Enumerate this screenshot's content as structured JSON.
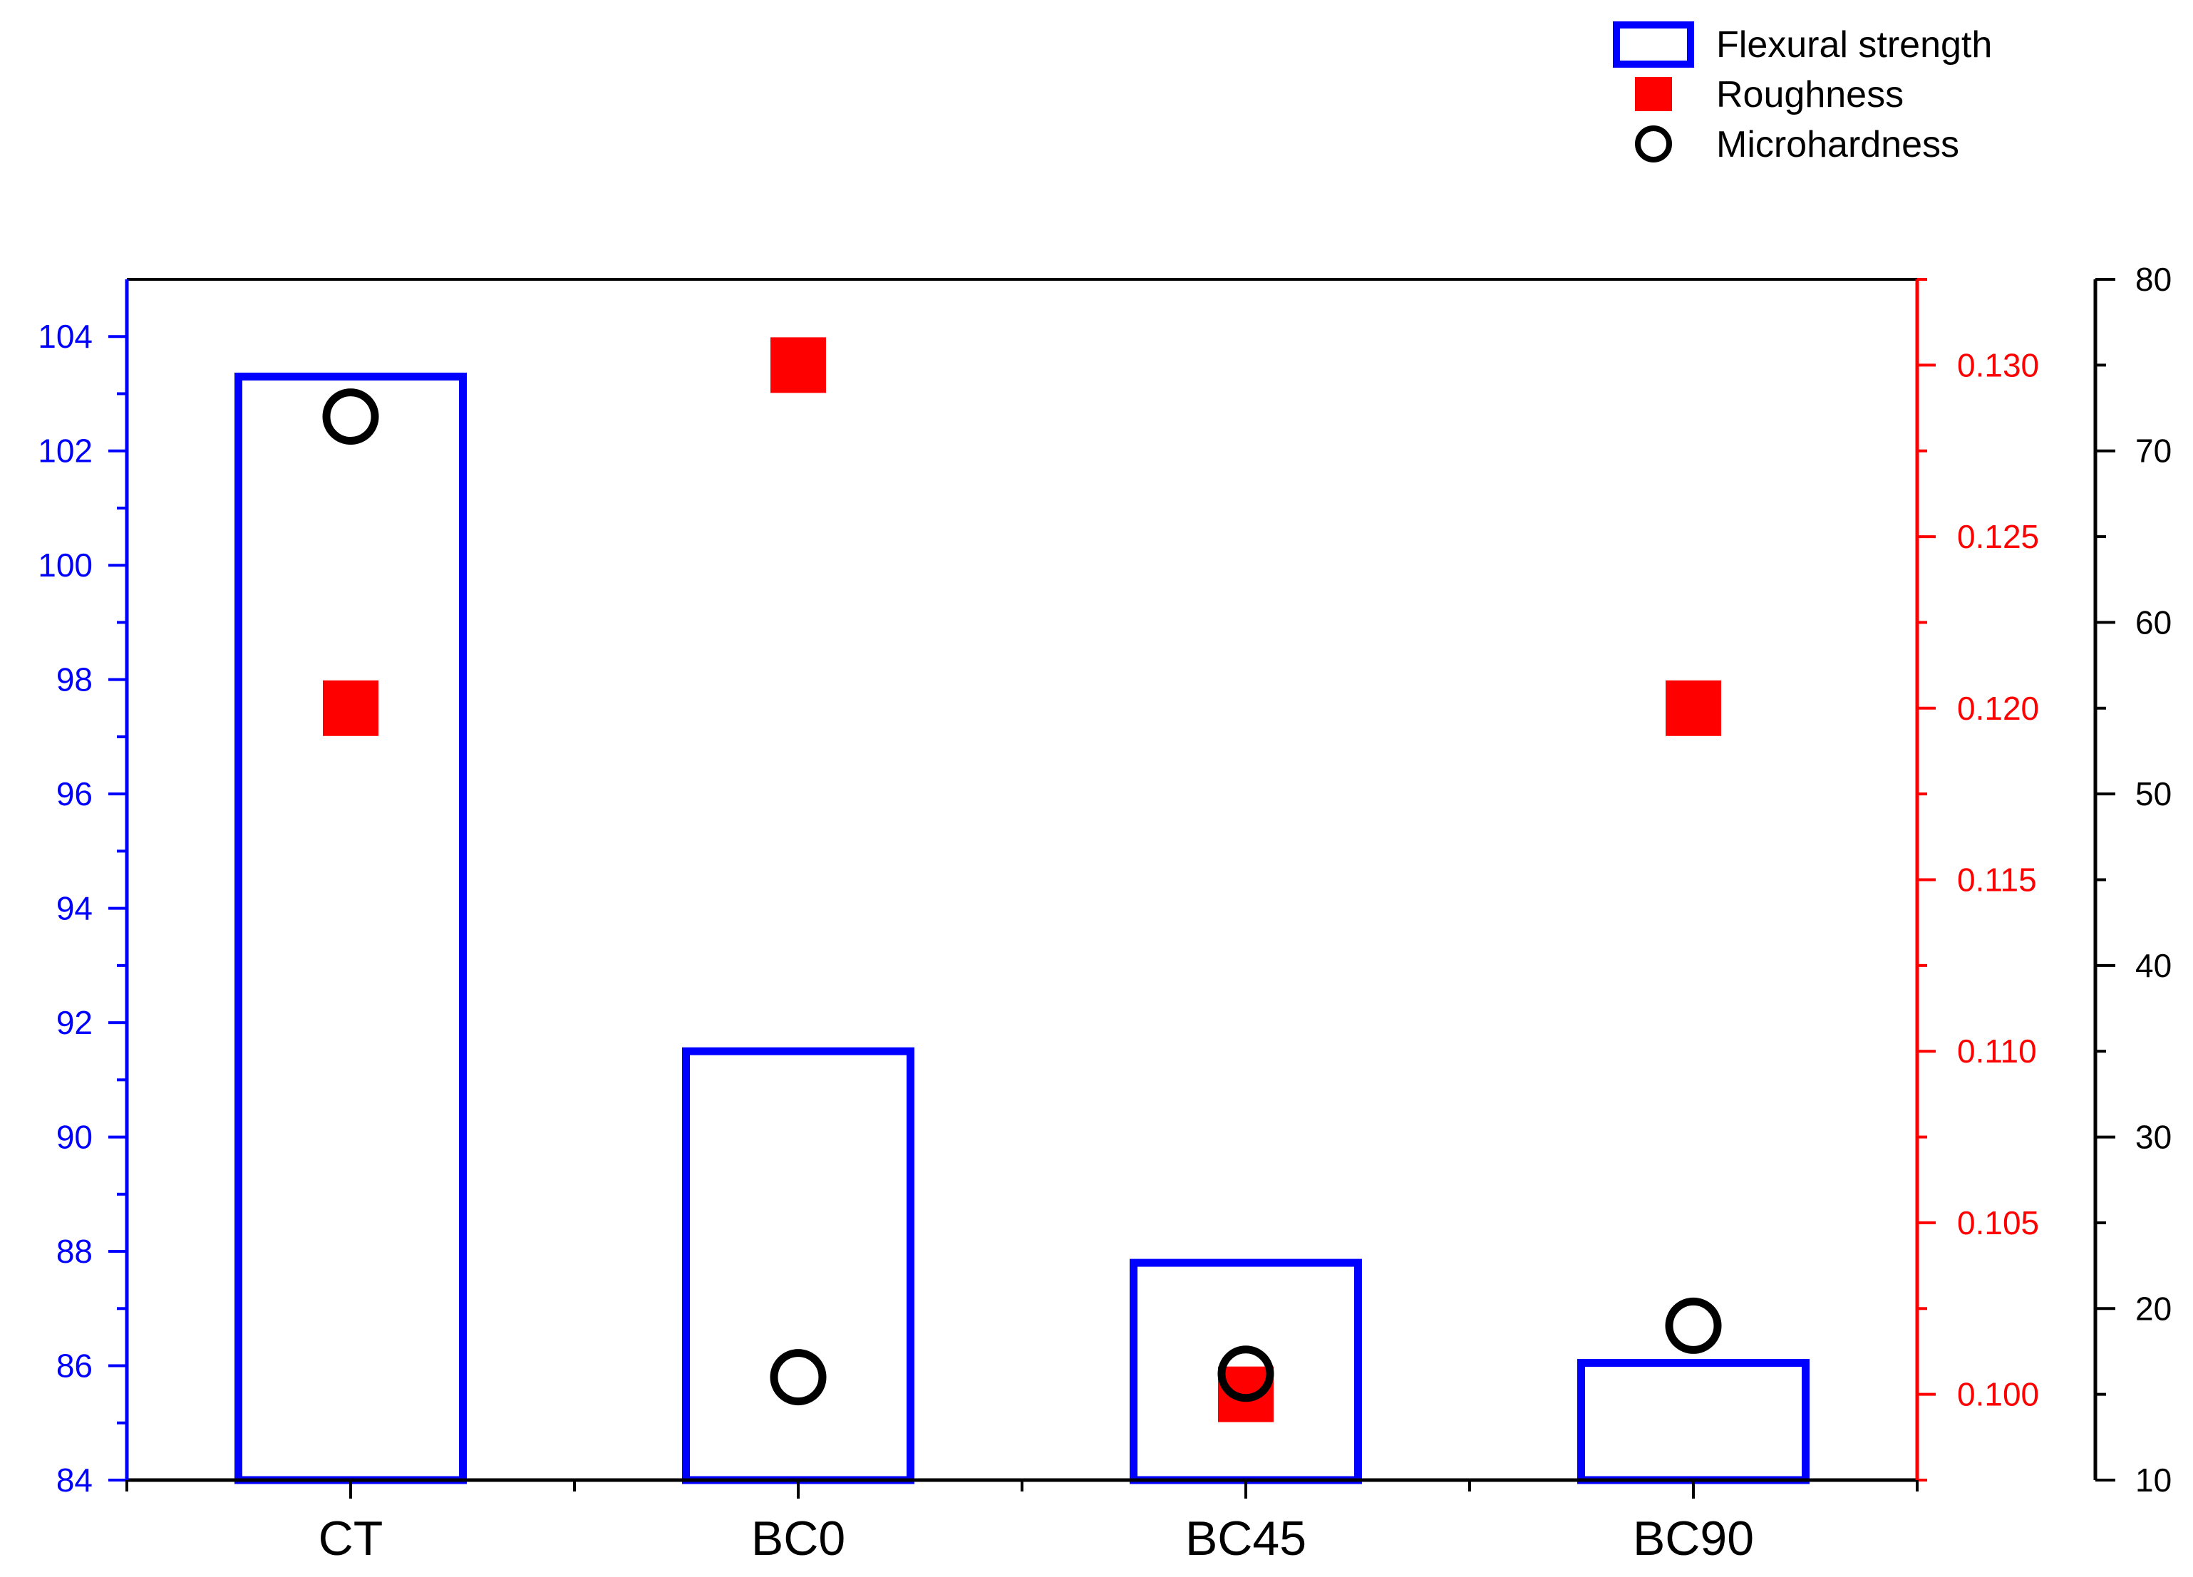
{
  "chart_data": {
    "type": "bar",
    "categories": [
      "CT",
      "BC0",
      "BC45",
      "BC90"
    ],
    "series": [
      {
        "name": "Flexural strength",
        "kind": "bar",
        "axis": "left",
        "color": "#0000ff",
        "values": [
          103.3,
          91.5,
          87.8,
          86.05
        ]
      },
      {
        "name": "Roughness",
        "kind": "square-marker",
        "axis": "right-inner",
        "color": "#ff0000",
        "values": [
          0.12,
          0.13,
          0.1,
          0.12
        ]
      },
      {
        "name": "Microhardness",
        "kind": "open-circle-marker",
        "axis": "right-outer",
        "color": "#000000",
        "values": [
          72,
          16,
          16.2,
          19
        ]
      }
    ],
    "axes": {
      "left": {
        "ylim": [
          84,
          105
        ],
        "ticks": [
          84,
          86,
          88,
          90,
          92,
          94,
          96,
          98,
          100,
          102,
          104
        ],
        "color": "#0000ff"
      },
      "right_inner": {
        "ylim": [
          0.0975,
          0.1325
        ],
        "ticks": [
          "0.100",
          "0.105",
          "0.110",
          "0.115",
          "0.120",
          "0.125",
          "0.130"
        ],
        "tick_values": [
          0.1,
          0.105,
          0.11,
          0.115,
          0.12,
          0.125,
          0.13
        ],
        "color": "#ff0000"
      },
      "right_outer": {
        "ylim": [
          10,
          80
        ],
        "ticks": [
          10,
          20,
          30,
          40,
          50,
          60,
          70,
          80
        ],
        "color": "#000000"
      }
    },
    "grid": false,
    "legend_placement": "top-right"
  }
}
